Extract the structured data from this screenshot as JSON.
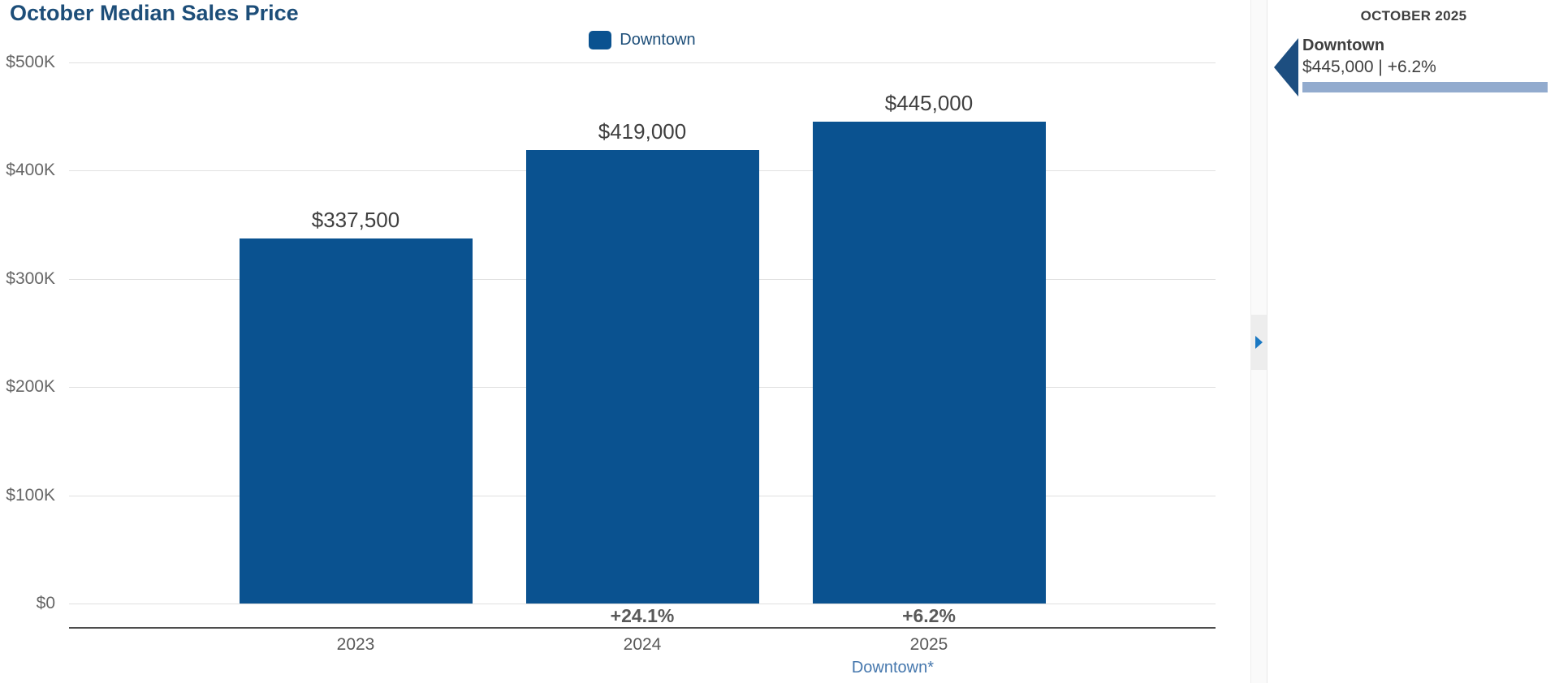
{
  "title": "October Median Sales Price",
  "legend": {
    "label": "Downtown"
  },
  "footnote": "Downtown*",
  "side_panel": {
    "header": "OCTOBER 2025",
    "entries": [
      {
        "name": "Downtown",
        "detail": "$445,000 | +6.2%"
      }
    ]
  },
  "colors": {
    "bar": "#0a5290",
    "title_text": "#1d4e79",
    "grid": "#e0e0e0",
    "axis": "#4d4d4d",
    "accent_light": "#92abce",
    "toggle_arrow": "#1a78c2",
    "panel_arrow": "#1d4e80",
    "footnote_link": "#4577ad"
  },
  "chart_data": {
    "type": "bar",
    "title": "October Median Sales Price",
    "series_name": "Downtown",
    "categories": [
      "2023",
      "2024",
      "2025"
    ],
    "values": [
      337500,
      419000,
      445000
    ],
    "value_labels": [
      "$337,500",
      "$419,000",
      "$445,000"
    ],
    "pct_change_labels": [
      "",
      "+24.1%",
      "+6.2%"
    ],
    "ylim": [
      0,
      500000
    ],
    "yticks": [
      {
        "value": 0,
        "label": "$0"
      },
      {
        "value": 100000,
        "label": "$100K"
      },
      {
        "value": 200000,
        "label": "$200K"
      },
      {
        "value": 300000,
        "label": "$300K"
      },
      {
        "value": 400000,
        "label": "$400K"
      },
      {
        "value": 500000,
        "label": "$500K"
      }
    ],
    "grid": true,
    "legend_position": "top-center"
  }
}
